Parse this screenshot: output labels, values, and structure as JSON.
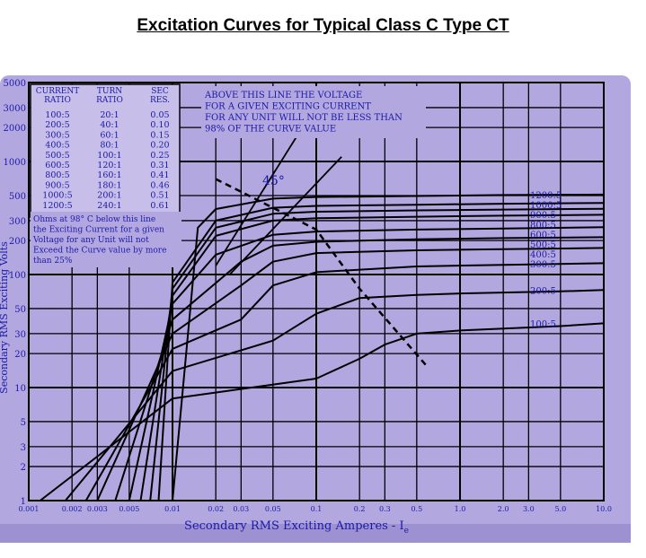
{
  "page_title": "Excitation Curves for Typical Class C Type CT",
  "chart_data": {
    "type": "line",
    "title": "Excitation Curves for Typical Class C Type CT",
    "xlabel": "Secondary RMS Exciting Amperes - I",
    "xlabel_subscript": "e",
    "ylabel": "Secondary RMS Exciting Volts",
    "xscale": "log",
    "yscale": "log",
    "xlim": [
      0.001,
      10
    ],
    "ylim": [
      1,
      5000
    ],
    "grid": true,
    "x_tick_labels": [
      {
        "v": 0.001,
        "t": "0.001"
      },
      {
        "v": 0.002,
        "t": "0.002"
      },
      {
        "v": 0.003,
        "t": "0.003"
      },
      {
        "v": 0.005,
        "t": "0.005"
      },
      {
        "v": 0.01,
        "t": "0.01"
      },
      {
        "v": 0.02,
        "t": "0.02"
      },
      {
        "v": 0.03,
        "t": "0.03"
      },
      {
        "v": 0.05,
        "t": "0.05"
      },
      {
        "v": 0.1,
        "t": "0.1"
      },
      {
        "v": 0.2,
        "t": "0.2"
      },
      {
        "v": 0.3,
        "t": "0.3"
      },
      {
        "v": 0.5,
        "t": "0.5"
      },
      {
        "v": 1,
        "t": "1.0"
      },
      {
        "v": 2,
        "t": "2.0"
      },
      {
        "v": 3,
        "t": "3.0"
      },
      {
        "v": 5,
        "t": "5.0"
      },
      {
        "v": 10,
        "t": "10.0"
      }
    ],
    "y_tick_labels": [
      {
        "v": 1,
        "t": "1"
      },
      {
        "v": 2,
        "t": "2"
      },
      {
        "v": 3,
        "t": "3"
      },
      {
        "v": 5,
        "t": "5"
      },
      {
        "v": 10,
        "t": "10"
      },
      {
        "v": 20,
        "t": "20"
      },
      {
        "v": 30,
        "t": "30"
      },
      {
        "v": 50,
        "t": "50"
      },
      {
        "v": 100,
        "t": "100"
      },
      {
        "v": 200,
        "t": "200"
      },
      {
        "v": 300,
        "t": "300"
      },
      {
        "v": 500,
        "t": "500"
      },
      {
        "v": 1000,
        "t": "1000"
      },
      {
        "v": 2000,
        "t": "2000"
      },
      {
        "v": 3000,
        "t": "3000"
      },
      {
        "v": 5000,
        "t": "5000"
      }
    ],
    "series": [
      {
        "name": "100:5",
        "label": "100:5",
        "points": [
          [
            0.0012,
            1
          ],
          [
            0.01,
            8
          ],
          [
            0.1,
            12
          ],
          [
            0.2,
            18
          ],
          [
            0.3,
            24
          ],
          [
            0.5,
            30
          ],
          [
            1,
            32
          ],
          [
            5,
            35
          ],
          [
            10,
            37
          ]
        ]
      },
      {
        "name": "200:5",
        "label": "200:5",
        "points": [
          [
            0.0018,
            1
          ],
          [
            0.01,
            14
          ],
          [
            0.05,
            26
          ],
          [
            0.1,
            45
          ],
          [
            0.2,
            62
          ],
          [
            0.5,
            66
          ],
          [
            1,
            68
          ],
          [
            5,
            71
          ],
          [
            10,
            73
          ]
        ]
      },
      {
        "name": "300:5",
        "label": "300:5",
        "points": [
          [
            0.0025,
            1
          ],
          [
            0.01,
            22
          ],
          [
            0.03,
            40
          ],
          [
            0.05,
            80
          ],
          [
            0.1,
            105
          ],
          [
            0.5,
            118
          ],
          [
            2,
            122
          ],
          [
            10,
            126
          ]
        ]
      },
      {
        "name": "400:5",
        "label": "400:5",
        "points": [
          [
            0.003,
            1
          ],
          [
            0.01,
            30
          ],
          [
            0.03,
            80
          ],
          [
            0.05,
            130
          ],
          [
            0.1,
            155
          ],
          [
            0.5,
            164
          ],
          [
            2,
            168
          ],
          [
            10,
            172
          ]
        ]
      },
      {
        "name": "500:5",
        "label": "500:5",
        "points": [
          [
            0.004,
            1
          ],
          [
            0.01,
            40
          ],
          [
            0.03,
            130
          ],
          [
            0.05,
            180
          ],
          [
            0.1,
            195
          ],
          [
            0.5,
            205
          ],
          [
            2,
            210
          ],
          [
            10,
            214
          ]
        ]
      },
      {
        "name": "600:5",
        "label": "600:5",
        "points": [
          [
            0.005,
            1
          ],
          [
            0.01,
            55
          ],
          [
            0.02,
            150
          ],
          [
            0.05,
            225
          ],
          [
            0.1,
            240
          ],
          [
            0.5,
            250
          ],
          [
            2,
            255
          ],
          [
            10,
            262
          ]
        ]
      },
      {
        "name": "800:5",
        "label": "800:5",
        "points": [
          [
            0.006,
            1
          ],
          [
            0.01,
            65
          ],
          [
            0.02,
            220
          ],
          [
            0.05,
            300
          ],
          [
            0.1,
            315
          ],
          [
            0.5,
            325
          ],
          [
            2,
            332
          ],
          [
            10,
            338
          ]
        ]
      },
      {
        "name": "900:5",
        "label": "900:5",
        "points": [
          [
            0.007,
            1
          ],
          [
            0.01,
            75
          ],
          [
            0.02,
            260
          ],
          [
            0.05,
            345
          ],
          [
            0.1,
            360
          ],
          [
            0.5,
            370
          ],
          [
            2,
            376
          ],
          [
            10,
            382
          ]
        ]
      },
      {
        "name": "1000:5",
        "label": "1000:5",
        "points": [
          [
            0.008,
            1
          ],
          [
            0.01,
            85
          ],
          [
            0.02,
            300
          ],
          [
            0.05,
            390
          ],
          [
            0.1,
            405
          ],
          [
            0.5,
            415
          ],
          [
            2,
            423
          ],
          [
            10,
            430
          ]
        ]
      },
      {
        "name": "1200:5",
        "label": "1200:5",
        "points": [
          [
            0.01,
            1
          ],
          [
            0.015,
            260
          ],
          [
            0.02,
            380
          ],
          [
            0.05,
            470
          ],
          [
            0.1,
            485
          ],
          [
            0.5,
            495
          ],
          [
            2,
            505
          ],
          [
            10,
            510
          ]
        ]
      }
    ],
    "knee_line": {
      "points": [
        [
          0.02,
          700
        ],
        [
          0.1,
          250
        ],
        [
          0.2,
          75
        ],
        [
          0.6,
          15
        ]
      ]
    },
    "ref_lines": [
      {
        "points": [
          [
            0.02,
            120
          ],
          [
            0.08,
            2000
          ]
        ]
      },
      {
        "points": [
          [
            0.025,
            100
          ],
          [
            0.15,
            1100
          ]
        ]
      }
    ],
    "annotations": {
      "angle_label": "45°",
      "above_line_note": [
        "ABOVE THIS LINE THE VOLTAGE",
        "FOR A GIVEN EXCITING CURRENT",
        "FOR ANY UNIT WILL NOT BE LESS THAN",
        "98% OF THE CURVE VALUE"
      ],
      "below_line_note": [
        "Ohms at 98° C below this line",
        "the Exciting Current for a given",
        "Voltage for any Unit will not",
        "Exceed the Curve value by more",
        "than 25%"
      ]
    },
    "ratio_table": {
      "headers": [
        [
          "CURRENT",
          "RATIO"
        ],
        [
          "TURN",
          "RATIO"
        ],
        [
          "SEC",
          "RES."
        ]
      ],
      "rows": [
        [
          "100:5",
          "20:1",
          "0.05"
        ],
        [
          "200:5",
          "40:1",
          "0.10"
        ],
        [
          "300:5",
          "60:1",
          "0.15"
        ],
        [
          "400:5",
          "80:1",
          "0.20"
        ],
        [
          "500:5",
          "100:1",
          "0.25"
        ],
        [
          "600:5",
          "120:1",
          "0.31"
        ],
        [
          "800:5",
          "160:1",
          "0.41"
        ],
        [
          "900:5",
          "180:1",
          "0.46"
        ],
        [
          "1000:5",
          "200:1",
          "0.51"
        ],
        [
          "1200:5",
          "240:1",
          "0.61"
        ]
      ]
    },
    "colors": {
      "background": "#b3a7e0",
      "curve": "#000000",
      "label_text": "#1a1aa8",
      "grid": "#000000",
      "table_bg": "#c7beea"
    }
  }
}
